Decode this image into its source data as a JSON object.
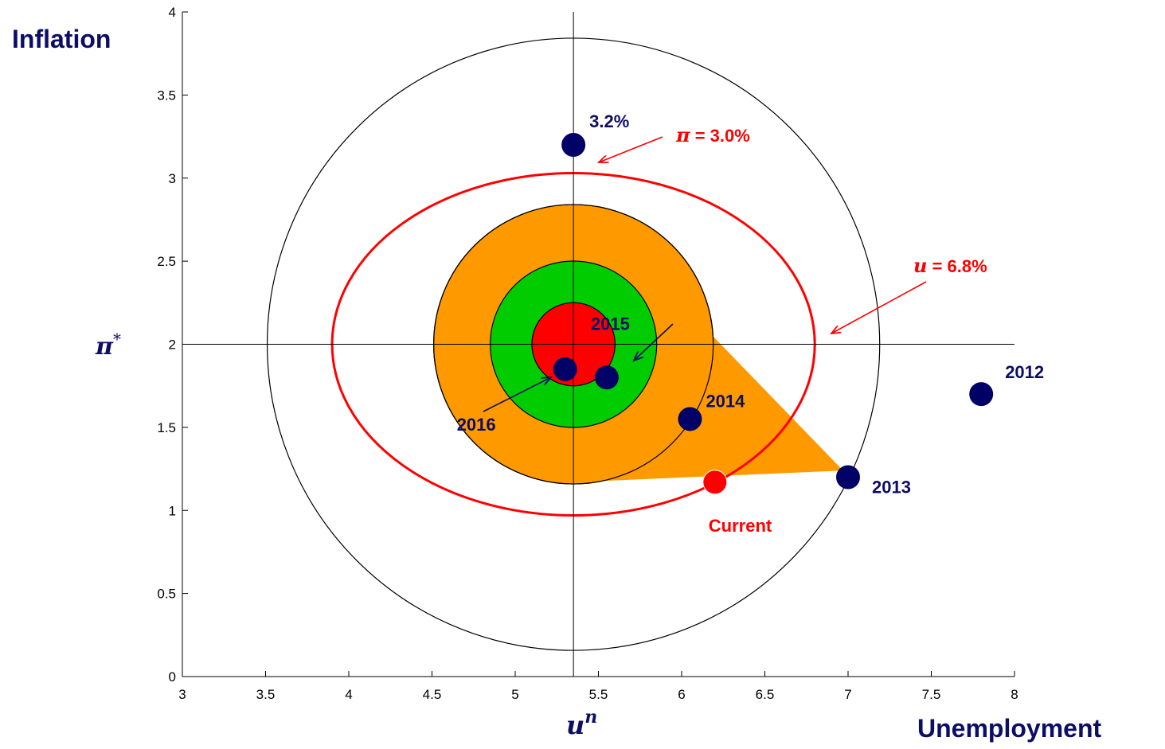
{
  "chart_data": {
    "type": "scatter",
    "xlim": [
      3,
      8
    ],
    "ylim": [
      0,
      4
    ],
    "xticks": [
      "3",
      "3.5",
      "4",
      "4.5",
      "5",
      "5.5",
      "6",
      "6.5",
      "7",
      "7.5",
      "8"
    ],
    "yticks": [
      "0",
      "0.5",
      "1",
      "1.5",
      "2",
      "2.5",
      "3",
      "3.5",
      "4"
    ],
    "xlabel": "Unemployment",
    "ylabel": "Inflation",
    "x_ref_label": "u",
    "x_ref_sup": "n",
    "y_ref_label": "π",
    "y_ref_sup": "*",
    "center": {
      "x": 5.35,
      "y": 2.0
    },
    "rings": [
      {
        "name": "orange",
        "radius_x": 0.84,
        "color": "#ff9900"
      },
      {
        "name": "green",
        "radius_x": 0.5,
        "color": "#00cc00"
      },
      {
        "name": "red",
        "radius_x": 0.25,
        "color": "#ff0000"
      }
    ],
    "outer_circle_radius_x": 1.84,
    "red_ellipse": {
      "x_from": 3.9,
      "x_to": 6.8,
      "y_from": 0.97,
      "y_to": 3.03,
      "color": "#ff0000"
    },
    "orange_region": [
      [
        5.35,
        2.8
      ],
      [
        5.8,
        2.45
      ],
      [
        6.97,
        1.24
      ],
      [
        5.35,
        1.17
      ]
    ],
    "points": [
      {
        "label": "2012",
        "x": 7.8,
        "y": 1.7,
        "color": "#000066"
      },
      {
        "label": "2013",
        "x": 7.0,
        "y": 1.2,
        "color": "#000066"
      },
      {
        "label": "2014",
        "x": 6.05,
        "y": 1.55,
        "color": "#000066"
      },
      {
        "label": "2015",
        "x": 5.55,
        "y": 1.8,
        "color": "#000066"
      },
      {
        "label": "2016",
        "x": 5.3,
        "y": 1.85,
        "color": "#000066"
      },
      {
        "label": "3.2%",
        "x": 5.35,
        "y": 3.2,
        "color": "#000066"
      },
      {
        "label": "Current",
        "x": 6.2,
        "y": 1.17,
        "color": "#ff0000"
      }
    ],
    "annotations": [
      {
        "id": "pi",
        "symbol": "π",
        "text": " = 3.0%",
        "color": "#ff0000"
      },
      {
        "id": "u",
        "symbol": "u",
        "text": " = 6.8%",
        "color": "#ff0000"
      }
    ],
    "grid": false
  }
}
